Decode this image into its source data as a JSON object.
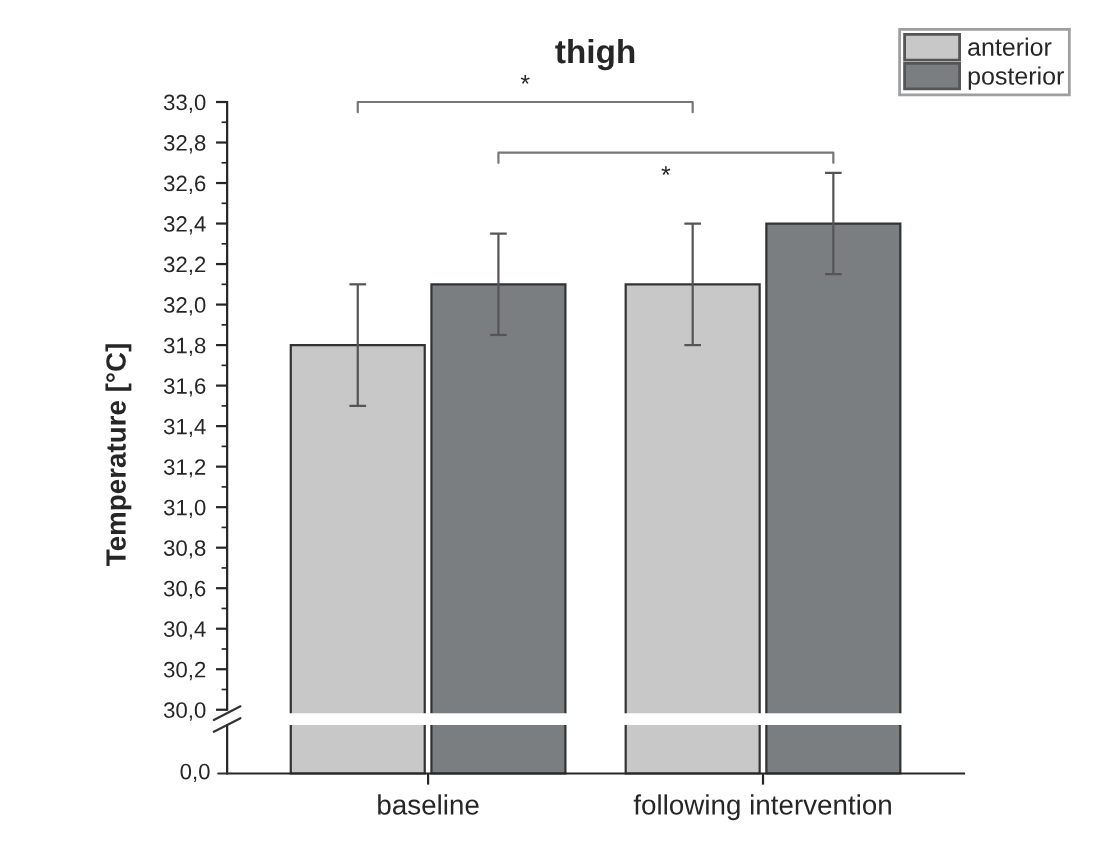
{
  "chart_data": {
    "type": "bar",
    "title": "thigh",
    "ylabel": "Temperature [°C]",
    "categories": [
      "baseline",
      "following intervention"
    ],
    "series": [
      {
        "name": "anterior",
        "color": "#c8c8c8",
        "values": [
          31.8,
          32.1
        ],
        "errors": [
          0.3,
          0.3
        ]
      },
      {
        "name": "posterior",
        "color": "#7a7e80",
        "values": [
          32.1,
          32.4
        ],
        "errors": [
          0.25,
          0.25
        ]
      }
    ],
    "ylim": [
      30.0,
      33.0
    ],
    "yticks": [
      {
        "value": 30.0,
        "label": "30,0"
      },
      {
        "value": 30.2,
        "label": "30,2"
      },
      {
        "value": 30.4,
        "label": "30,4"
      },
      {
        "value": 30.6,
        "label": "30,6"
      },
      {
        "value": 30.8,
        "label": "30,8"
      },
      {
        "value": 31.0,
        "label": "31,0"
      },
      {
        "value": 31.2,
        "label": "31,2"
      },
      {
        "value": 31.4,
        "label": "31,4"
      },
      {
        "value": 31.6,
        "label": "31,6"
      },
      {
        "value": 31.8,
        "label": "31,8"
      },
      {
        "value": 32.0,
        "label": "32,0"
      },
      {
        "value": 32.2,
        "label": "32,2"
      },
      {
        "value": 32.4,
        "label": "32,4"
      },
      {
        "value": 32.6,
        "label": "32,6"
      },
      {
        "value": 32.8,
        "label": "32,8"
      },
      {
        "value": 33.0,
        "label": "33,0"
      }
    ],
    "annotations": [
      "*",
      "*",
      "0,0"
    ],
    "legend": "top right",
    "grid": false
  }
}
